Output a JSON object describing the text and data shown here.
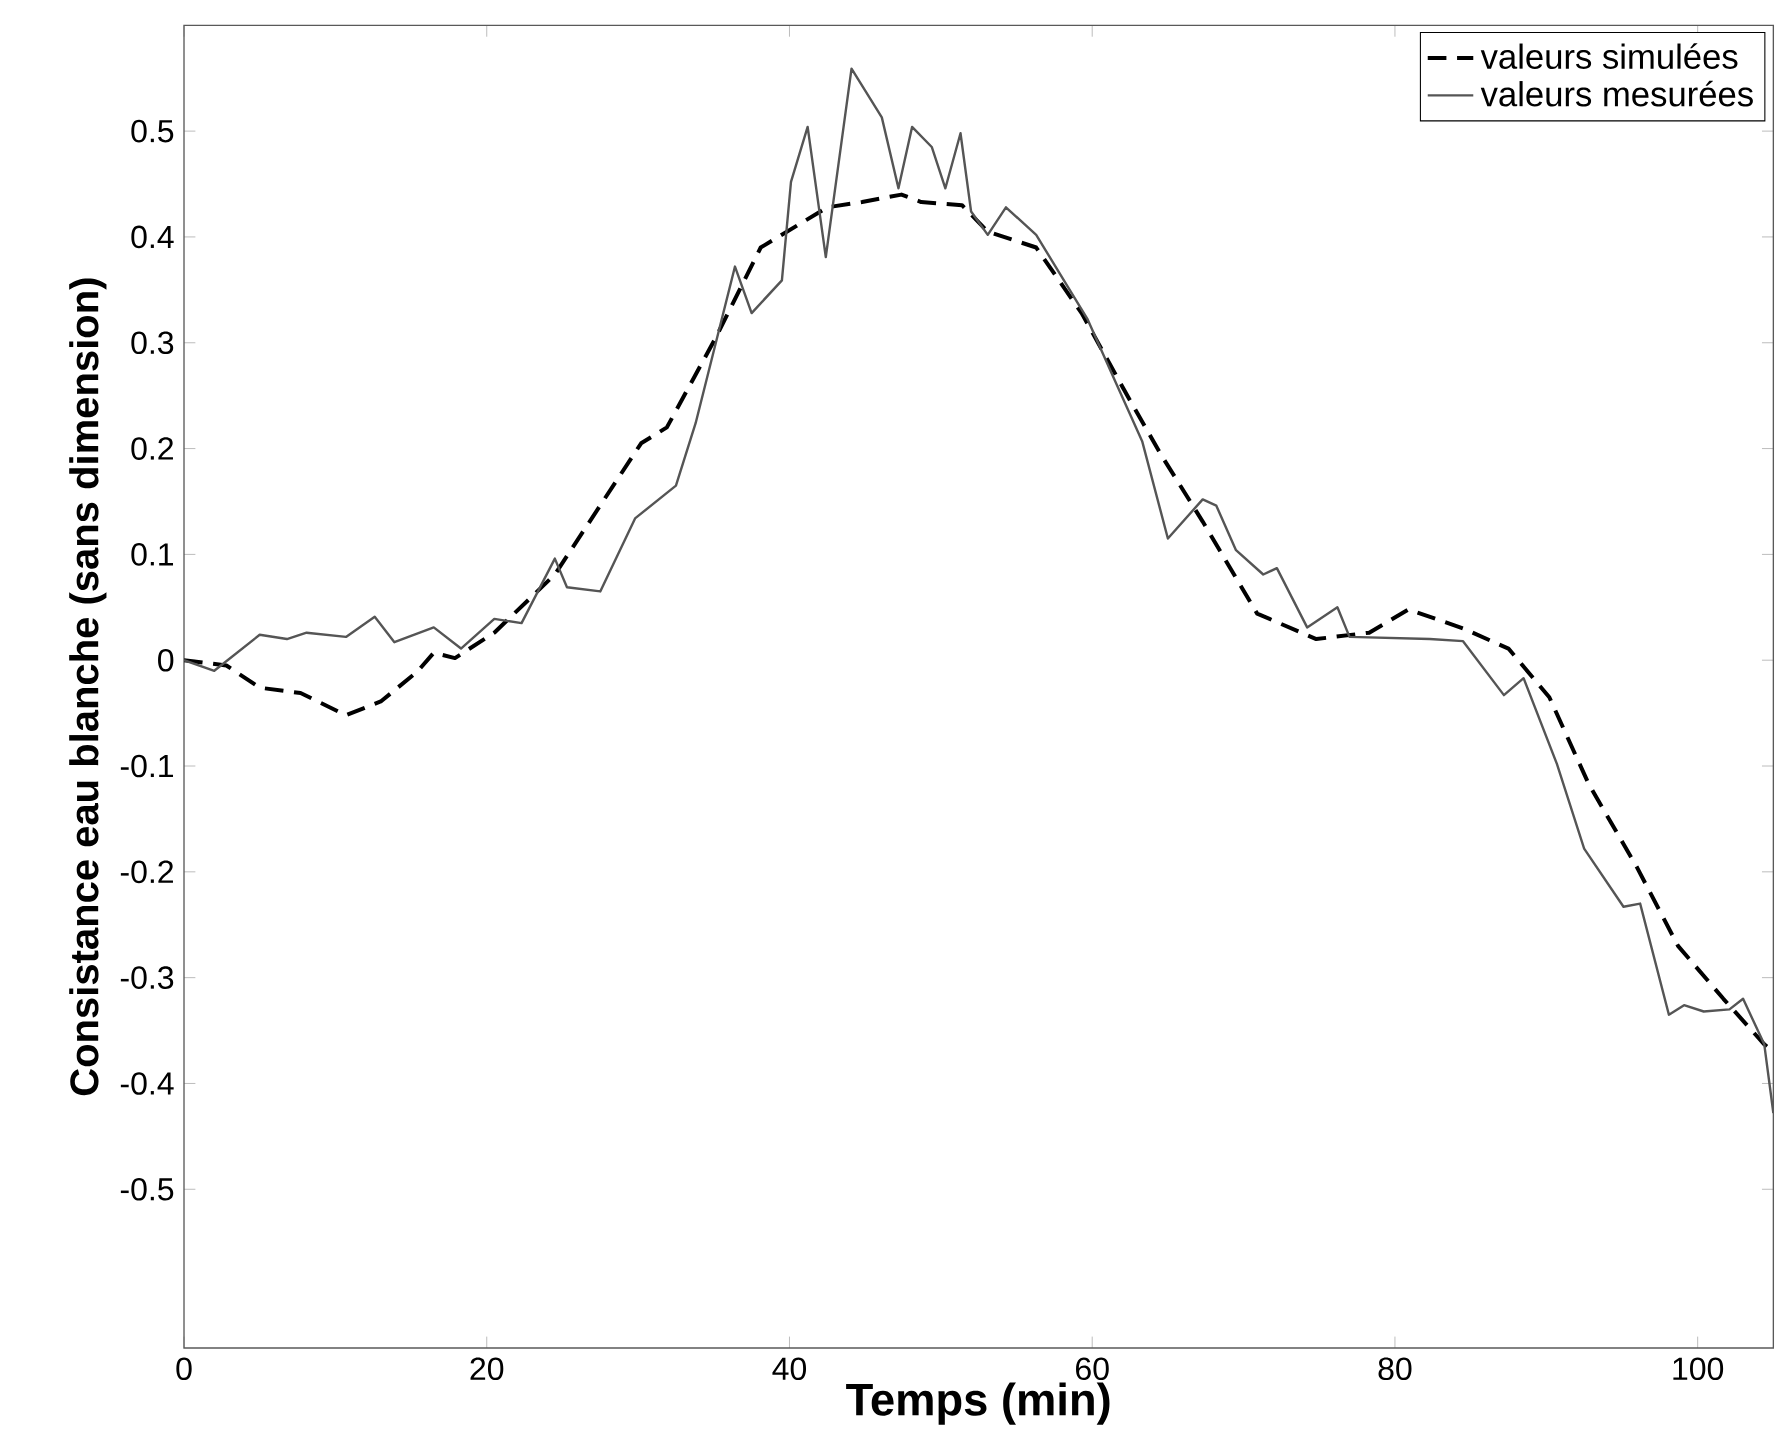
{
  "chart_data": {
    "type": "line",
    "xlabel": "Temps (min)",
    "ylabel": "Consistance eau blanche (sans dimension)",
    "xlim": [
      0,
      105
    ],
    "ylim": [
      -0.65,
      0.6
    ],
    "xticks": [
      0,
      20,
      40,
      60,
      80,
      100
    ],
    "yticks": [
      -0.5,
      -0.4,
      -0.3,
      -0.2,
      -0.1,
      0,
      0.1,
      0.2,
      0.3,
      0.4,
      0.5
    ],
    "grid": false,
    "legend": "top right",
    "series": [
      {
        "name": "valeurs simulées",
        "color": "#000000",
        "line_style": "dashed",
        "x": [
          0,
          2.8,
          5,
          7.7,
          10.7,
          13,
          15.4,
          16.5,
          17.9,
          20.5,
          24.5,
          30.2,
          31.9,
          35.1,
          38.1,
          42.5,
          44.8,
          47.4,
          48.7,
          51.4,
          53.1,
          56.3,
          59.3,
          62.4,
          64.6,
          67.3,
          70.9,
          74.8,
          78.3,
          80.9,
          84.5,
          87.5,
          90.2,
          92.8,
          96,
          98.7,
          101.7,
          104.4,
          105
        ],
        "values": [
          0,
          -0.005,
          -0.026,
          -0.031,
          -0.052,
          -0.039,
          -0.011,
          0.007,
          0.002,
          0.026,
          0.081,
          0.205,
          0.22,
          0.304,
          0.39,
          0.428,
          0.433,
          0.44,
          0.433,
          0.43,
          0.405,
          0.39,
          0.328,
          0.248,
          0.193,
          0.131,
          0.044,
          0.02,
          0.026,
          0.048,
          0.03,
          0.011,
          -0.035,
          -0.117,
          -0.196,
          -0.27,
          -0.32,
          -0.363,
          -0.37
        ]
      },
      {
        "name": "valeurs mesurées",
        "color": "#555555",
        "line_style": "solid",
        "x": [
          0,
          2,
          5,
          6.8,
          8.1,
          10.7,
          12.6,
          13.9,
          16.5,
          18.3,
          20.5,
          22.3,
          24.5,
          25.3,
          27.5,
          29.8,
          32.5,
          33.8,
          36.4,
          37.5,
          39.5,
          40.1,
          41.2,
          42.4,
          44.1,
          46.1,
          47.2,
          48.1,
          49.4,
          50.3,
          51.3,
          52,
          53.1,
          54.3,
          56.3,
          59.7,
          61.6,
          63.3,
          65,
          67.3,
          68.2,
          69.5,
          71.3,
          72.2,
          74.2,
          76.2,
          77,
          82.3,
          84.5,
          87.2,
          88.5,
          90.7,
          92.5,
          95.1,
          96.2,
          98.1,
          99.1,
          100.4,
          102.1,
          103,
          104.4,
          105
        ],
        "values": [
          0,
          -0.01,
          0.024,
          0.02,
          0.026,
          0.022,
          0.041,
          0.017,
          0.031,
          0.011,
          0.039,
          0.035,
          0.096,
          0.069,
          0.065,
          0.134,
          0.165,
          0.224,
          0.372,
          0.328,
          0.359,
          0.452,
          0.504,
          0.381,
          0.559,
          0.513,
          0.446,
          0.504,
          0.485,
          0.446,
          0.498,
          0.424,
          0.402,
          0.428,
          0.402,
          0.322,
          0.261,
          0.207,
          0.115,
          0.152,
          0.146,
          0.104,
          0.081,
          0.087,
          0.031,
          0.05,
          0.022,
          0.02,
          0.018,
          -0.033,
          -0.017,
          -0.098,
          -0.178,
          -0.233,
          -0.23,
          -0.335,
          -0.326,
          -0.332,
          -0.33,
          -0.32,
          -0.363,
          -0.428
        ]
      }
    ]
  }
}
